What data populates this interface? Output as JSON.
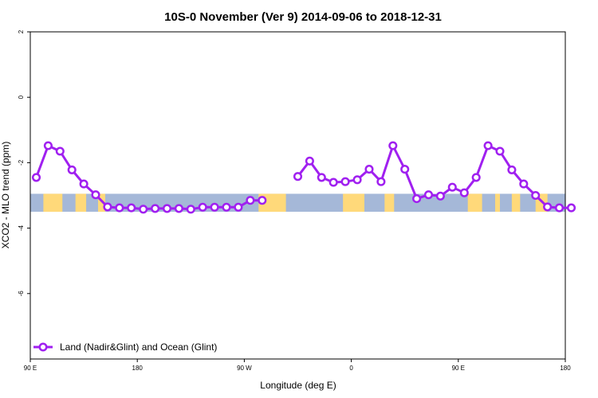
{
  "chart_data": {
    "type": "line",
    "title": "10S-0 November (Ver 9)   2014-09-06 to 2018-12-31",
    "xlabel": "Longitude (deg E)",
    "ylabel": "XCO2 - MLO trend (ppm)",
    "xlim": [
      90,
      540
    ],
    "ylim": [
      -8,
      2
    ],
    "x_ticks": [
      {
        "value": 90,
        "label": "90 E"
      },
      {
        "value": 180,
        "label": "180"
      },
      {
        "value": 270,
        "label": "90 W"
      },
      {
        "value": 360,
        "label": "0"
      },
      {
        "value": 450,
        "label": "90 E"
      },
      {
        "value": 540,
        "label": "180"
      }
    ],
    "y_ticks": [
      {
        "value": 2,
        "label": "2"
      },
      {
        "value": 0,
        "label": "0"
      },
      {
        "value": -2,
        "label": "-2"
      },
      {
        "value": -4,
        "label": "-4"
      },
      {
        "value": -6,
        "label": "-6"
      }
    ],
    "grid": false,
    "legend_position": "bottom-left",
    "series": [
      {
        "name": "Land (Nadir&Glint) and Ocean (Glint)",
        "color": "#a020f0",
        "points": [
          [
            95,
            -2.45
          ],
          [
            105,
            -1.48
          ],
          [
            115,
            -1.65
          ],
          [
            125,
            -2.22
          ],
          [
            135,
            -2.65
          ],
          [
            145,
            -2.98
          ],
          [
            155,
            -3.35
          ],
          [
            165,
            -3.38
          ],
          [
            175,
            -3.38
          ],
          [
            185,
            -3.42
          ],
          [
            195,
            -3.4
          ],
          [
            205,
            -3.4
          ],
          [
            215,
            -3.4
          ],
          [
            225,
            -3.42
          ],
          [
            235,
            -3.36
          ],
          [
            245,
            -3.36
          ],
          [
            255,
            -3.36
          ],
          [
            265,
            -3.36
          ],
          [
            275,
            -3.15
          ],
          [
            285,
            -3.15
          ],
          null,
          [
            315,
            -2.42
          ],
          [
            325,
            -1.95
          ],
          [
            335,
            -2.45
          ],
          [
            345,
            -2.6
          ],
          [
            355,
            -2.58
          ],
          [
            365,
            -2.52
          ],
          [
            375,
            -2.2
          ],
          [
            385,
            -2.58
          ],
          [
            395,
            -1.48
          ],
          [
            405,
            -2.2
          ],
          [
            415,
            -3.1
          ],
          [
            425,
            -2.98
          ],
          [
            435,
            -3.02
          ],
          [
            445,
            -2.75
          ],
          [
            455,
            -2.92
          ],
          [
            465,
            -2.45
          ],
          [
            475,
            -1.48
          ],
          [
            485,
            -1.65
          ],
          [
            495,
            -2.22
          ],
          [
            505,
            -2.65
          ],
          [
            515,
            -3.0
          ],
          [
            525,
            -3.35
          ],
          [
            535,
            -3.38
          ],
          [
            545,
            -3.38
          ]
        ]
      }
    ],
    "band": {
      "y_range": [
        -3.5,
        -2.95
      ],
      "ocean_color": "#a5b8d8",
      "land_color": "#ffd97a",
      "land_x_ranges": [
        [
          101,
          117
        ],
        [
          128,
          137
        ],
        [
          147,
          153
        ],
        [
          282,
          305
        ],
        [
          353,
          371
        ],
        [
          388,
          396
        ],
        [
          458,
          470
        ],
        [
          481,
          485
        ],
        [
          495,
          502
        ],
        [
          515,
          525
        ]
      ]
    }
  }
}
